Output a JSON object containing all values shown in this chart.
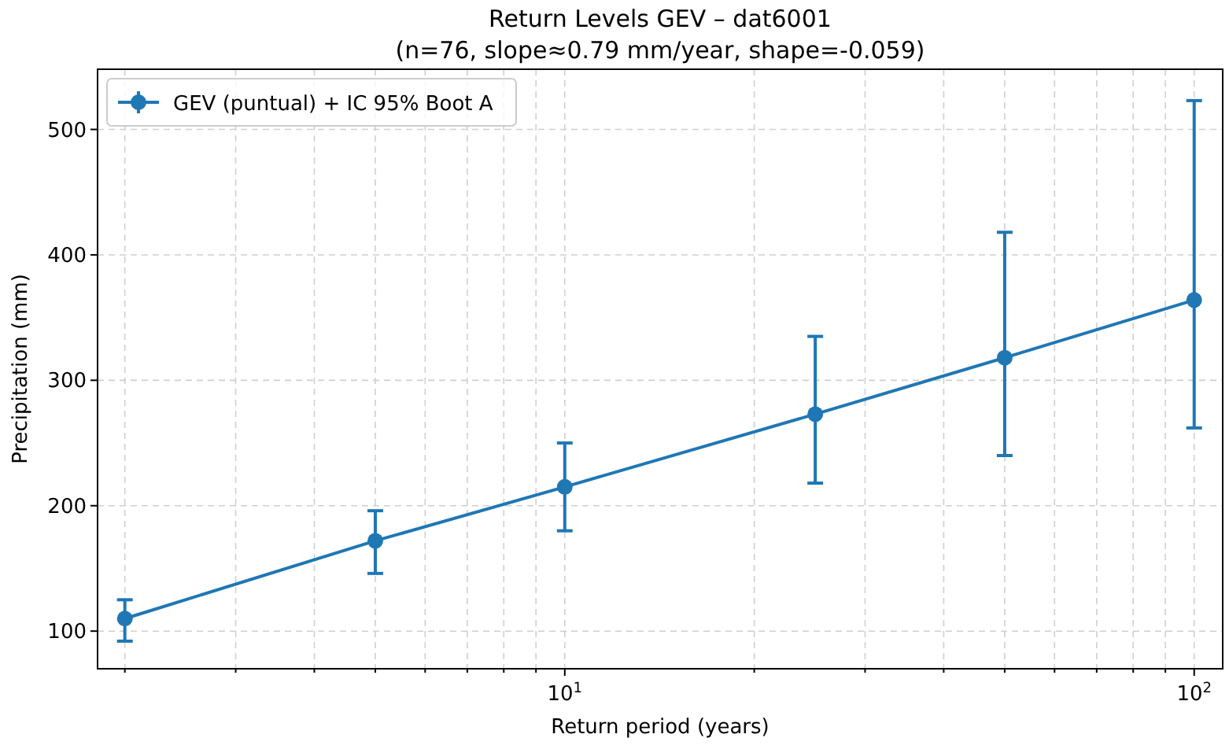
{
  "chart_data": {
    "type": "line",
    "title": "Return Levels GEV – dat6001",
    "subtitle": "(n=76, slope≈0.79 mm/year, shape=-0.059)",
    "xlabel": "Return period (years)",
    "ylabel": "Precipitation (mm)",
    "x": [
      2,
      5,
      10,
      25,
      50,
      100
    ],
    "series": [
      {
        "name": "GEV (puntual) + IC 95% Boot A",
        "color": "#1f77b4",
        "values": [
          110,
          172,
          215,
          273,
          318,
          364
        ],
        "errors": [
          [
            92,
            125
          ],
          [
            146,
            196
          ],
          [
            180,
            250
          ],
          [
            218,
            335
          ],
          [
            240,
            418
          ],
          [
            262,
            523
          ]
        ]
      }
    ],
    "log": "x",
    "xlim": [
      1.81,
      111
    ],
    "ylim": [
      70,
      548
    ],
    "xticks": [
      {
        "value": 2,
        "label": null
      },
      {
        "value": 3,
        "label": null
      },
      {
        "value": 4,
        "label": null
      },
      {
        "value": 5,
        "label": null
      },
      {
        "value": 6,
        "label": null
      },
      {
        "value": 7,
        "label": null
      },
      {
        "value": 8,
        "label": null
      },
      {
        "value": 9,
        "label": null
      },
      {
        "value": 10,
        "label": "10$^{1}$"
      },
      {
        "value": 20,
        "label": null
      },
      {
        "value": 30,
        "label": null
      },
      {
        "value": 40,
        "label": null
      },
      {
        "value": 50,
        "label": null
      },
      {
        "value": 60,
        "label": null
      },
      {
        "value": 70,
        "label": null
      },
      {
        "value": 80,
        "label": null
      },
      {
        "value": 90,
        "label": null
      },
      {
        "value": 100,
        "label": "10$^{2}$"
      }
    ],
    "yticks": [
      100,
      200,
      300,
      400,
      500
    ],
    "grid": true,
    "legend": "top left",
    "marker": "circle",
    "line_style": "solid"
  }
}
